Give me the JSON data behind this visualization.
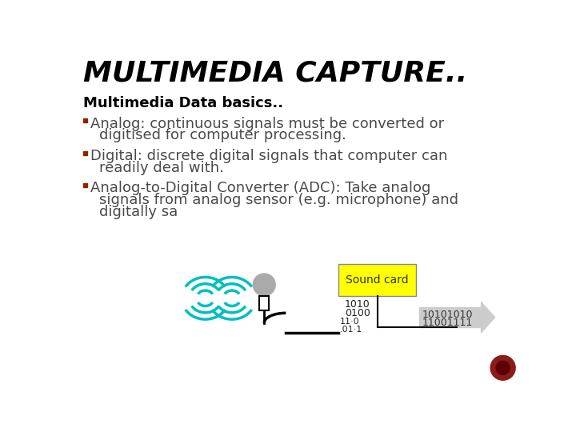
{
  "title": "MULTIMEDIA CAPTURE..",
  "subtitle": "Multimedia Data basics..",
  "bullet_color": "#8B2500",
  "title_color": "#000000",
  "subtitle_color": "#000000",
  "body_color": "#4a4a4a",
  "bg_color": "#ffffff",
  "bullet1_line1": "Analog: continuous signals must be converted or",
  "bullet1_line2": "digitised for computer processing.",
  "bullet2_line1": "Digital: discrete digital signals that computer can",
  "bullet2_line2": "readily deal with.",
  "bullet3_line1": "Analog-to-Digital Converter (ADC): Take analog",
  "bullet3_line2": "signals from analog sensor (e.g. microphone) and",
  "bullet3_line3": "digitally sa",
  "sound_card_label": "Sound card",
  "binary1": "1010",
  "binary2": "0100",
  "binary3": "11001111",
  "binary4": "10101010",
  "binary5": "11·0",
  "binary6": ".01·1",
  "wave_color": "#00BFBF",
  "yellow_color": "#FFFF00",
  "arrow_color": "#CCCCCC",
  "red_circle_color": "#8B1A1A",
  "red_inner_color": "#5C0000"
}
